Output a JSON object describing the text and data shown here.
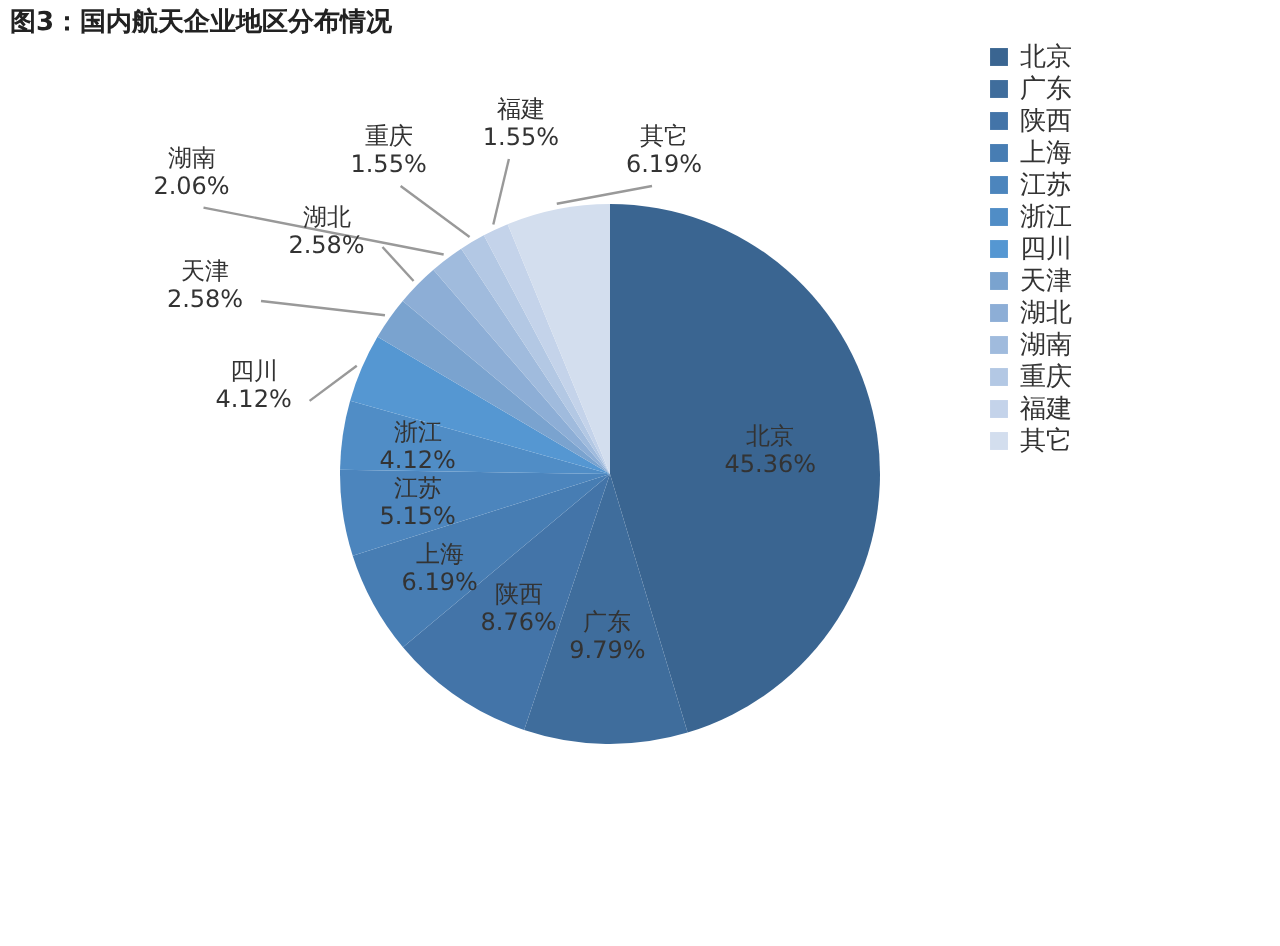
{
  "chart_data": {
    "type": "pie",
    "title": "图3：国内航天企业地区分布情况",
    "categories": [
      "北京",
      "广东",
      "陕西",
      "上海",
      "江苏",
      "浙江",
      "四川",
      "天津",
      "湖北",
      "湖南",
      "重庆",
      "福建",
      "其它"
    ],
    "values": [
      45.36,
      9.79,
      8.76,
      6.19,
      5.15,
      4.12,
      4.12,
      2.58,
      2.58,
      2.06,
      1.55,
      1.55,
      6.19
    ],
    "value_labels": [
      "45.36%",
      "9.79%",
      "8.76%",
      "6.19%",
      "5.15%",
      "4.12%",
      "4.12%",
      "2.58%",
      "2.58%",
      "2.06%",
      "1.55%",
      "1.55%",
      "6.19%"
    ],
    "colors": [
      "#3a6591",
      "#3f6d9c",
      "#4374a8",
      "#477db3",
      "#4c85bd",
      "#508dc6",
      "#5597d2",
      "#7aa3cf",
      "#8daed6",
      "#a0bbdd",
      "#b3c8e4",
      "#c4d3ea",
      "#d3deee"
    ],
    "legend": "right"
  }
}
